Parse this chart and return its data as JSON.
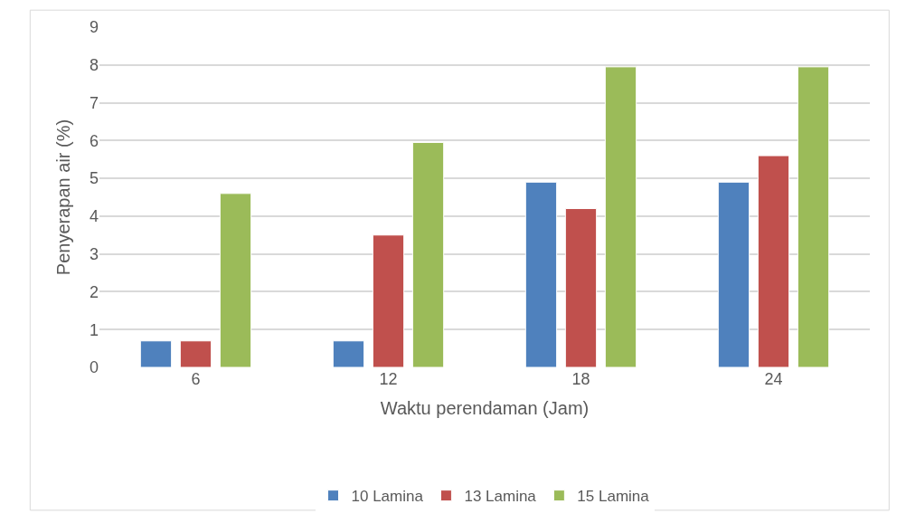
{
  "chart_data": {
    "type": "bar",
    "xlabel": "Waktu perendaman (Jam)",
    "ylabel": "Penyerapan air (%)",
    "categories": [
      "6",
      "12",
      "18",
      "24"
    ],
    "series": [
      {
        "name": "10 Lamina",
        "color": "#4f81bd",
        "values": [
          0.7,
          0.7,
          4.9,
          4.9
        ]
      },
      {
        "name": "13 Lamina",
        "color": "#c0504d",
        "values": [
          0.7,
          3.5,
          4.2,
          5.6
        ]
      },
      {
        "name": "15 Lamina",
        "color": "#9bbb59",
        "values": [
          4.6,
          5.95,
          7.95,
          7.95
        ]
      }
    ],
    "ylim": [
      0,
      9
    ],
    "yticks": [
      0,
      1,
      2,
      3,
      4,
      5,
      6,
      7,
      8,
      9
    ],
    "grid": "y",
    "legend": "bottom"
  }
}
